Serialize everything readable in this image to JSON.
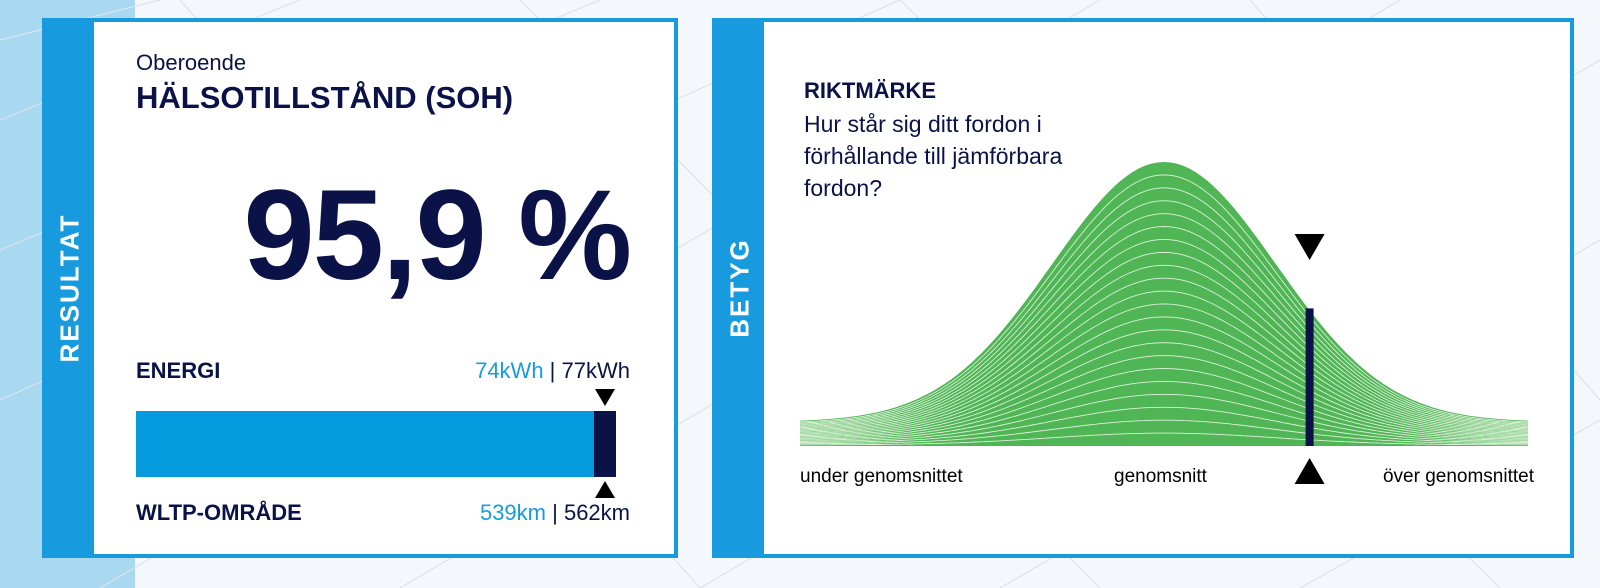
{
  "result_card": {
    "side_label": "RESULTAT",
    "subtitle": "Oberoende",
    "title": "HÄLSOTILLSTÅND (SOH)",
    "soh_value": "95,9 %",
    "energy": {
      "label": "ENERGI",
      "current": "74kWh",
      "separator": " | ",
      "original": "77kWh"
    },
    "wltp": {
      "label": "WLTP-OMRÅDE",
      "current": "539km",
      "separator": " | ",
      "original": "562km"
    },
    "bar_fraction": 0.959
  },
  "rating_card": {
    "side_label": "BETYG",
    "title": "RIKTMÄRKE",
    "question": "Hur står sig ditt fordon i förhållande till jämförbara fordon?",
    "axis_labels": {
      "left": "under genomsnittet",
      "center": "genomsnitt",
      "right": "över genomsnittet"
    },
    "marker_position": 0.7
  },
  "colors": {
    "accent_blue": "#179bde",
    "navy": "#0a1248",
    "curve_green": "#4fb555"
  }
}
